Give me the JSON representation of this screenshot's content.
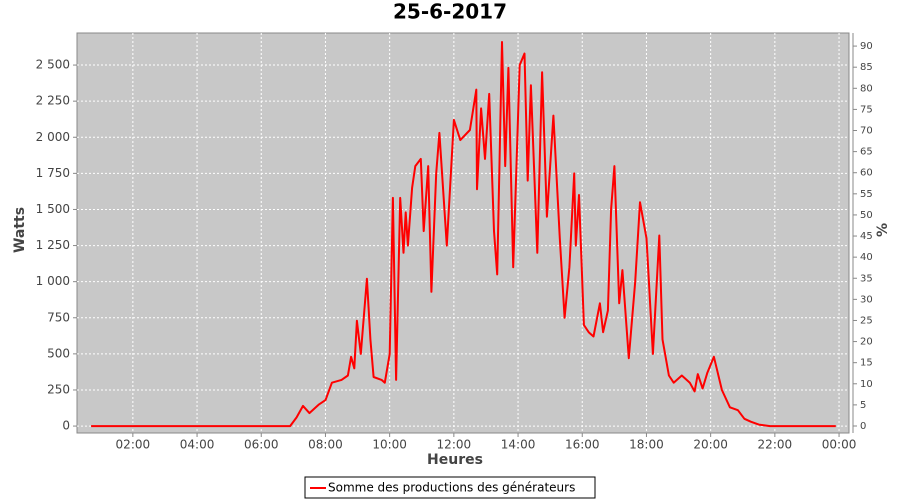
{
  "chart_data": {
    "type": "line",
    "title": "25-6-2017",
    "x_label": "Heures",
    "y_label": "Watts",
    "y2_label": "%",
    "x": [
      0.7,
      6.5,
      6.9,
      7.1,
      7.3,
      7.5,
      7.8,
      8.0,
      8.2,
      8.5,
      8.7,
      8.8,
      8.9,
      8.98,
      9.1,
      9.29,
      9.4,
      9.5,
      9.75,
      9.85,
      10.0,
      10.1,
      10.2,
      10.33,
      10.43,
      10.5,
      10.57,
      10.7,
      10.8,
      10.97,
      11.06,
      11.2,
      11.3,
      11.45,
      11.55,
      11.78,
      12.0,
      12.2,
      12.5,
      12.7,
      12.72,
      12.85,
      12.97,
      13.1,
      13.25,
      13.35,
      13.5,
      13.6,
      13.7,
      13.85,
      14.05,
      14.2,
      14.3,
      14.4,
      14.6,
      14.75,
      14.9,
      15.1,
      15.3,
      15.45,
      15.6,
      15.75,
      15.8,
      15.9,
      16.05,
      16.2,
      16.35,
      16.55,
      16.65,
      16.8,
      16.9,
      17.0,
      17.15,
      17.25,
      17.45,
      17.65,
      17.8,
      18.0,
      18.2,
      18.4,
      18.5,
      18.7,
      18.85,
      19.1,
      19.35,
      19.5,
      19.6,
      19.75,
      19.9,
      20.1,
      20.35,
      20.6,
      20.85,
      21.05,
      21.25,
      21.5,
      21.85,
      23.9
    ],
    "series": [
      {
        "name": "Somme des productions des  générateurs",
        "color": "#ff0000",
        "values": [
          0,
          0,
          0,
          60,
          140,
          90,
          150,
          180,
          300,
          320,
          350,
          480,
          400,
          730,
          500,
          1020,
          600,
          340,
          320,
          300,
          500,
          1580,
          320,
          1580,
          1200,
          1480,
          1250,
          1650,
          1800,
          1850,
          1350,
          1800,
          930,
          1750,
          2030,
          1250,
          2120,
          1980,
          2050,
          2330,
          1640,
          2200,
          1850,
          2300,
          1350,
          1050,
          2660,
          1800,
          2480,
          1100,
          2500,
          2580,
          1700,
          2360,
          1200,
          2450,
          1450,
          2150,
          1300,
          750,
          1100,
          1750,
          1250,
          1600,
          700,
          650,
          620,
          850,
          650,
          800,
          1500,
          1800,
          850,
          1080,
          470,
          1000,
          1550,
          1300,
          500,
          1320,
          600,
          350,
          300,
          350,
          300,
          240,
          360,
          260,
          370,
          480,
          250,
          130,
          110,
          50,
          30,
          10,
          0,
          0
        ]
      }
    ],
    "xlim": [
      0.26,
      24.31
    ],
    "xticks": [
      {
        "value": 2,
        "label": "02:00"
      },
      {
        "value": 4,
        "label": "04:00"
      },
      {
        "value": 6,
        "label": "06:00"
      },
      {
        "value": 8,
        "label": "08:00"
      },
      {
        "value": 10,
        "label": "10:00"
      },
      {
        "value": 12,
        "label": "12:00"
      },
      {
        "value": 14,
        "label": "14:00"
      },
      {
        "value": 16,
        "label": "16:00"
      },
      {
        "value": 18,
        "label": "18:00"
      },
      {
        "value": 20,
        "label": "20:00"
      },
      {
        "value": 22,
        "label": "22:00"
      },
      {
        "value": 24,
        "label": "00:00"
      }
    ],
    "ylim": [
      -48,
      2722
    ],
    "yticks": [
      0,
      250,
      500,
      750,
      {
        "value": 1000,
        "label": "1 000"
      },
      {
        "value": 1250,
        "label": "1 250"
      },
      {
        "value": 1500,
        "label": "1 500"
      },
      {
        "value": 1750,
        "label": "1 750"
      },
      {
        "value": 2000,
        "label": "2 000"
      },
      {
        "value": 2250,
        "label": "2 250"
      },
      {
        "value": 2500,
        "label": "2 500"
      }
    ],
    "y2lim": [
      -1.66,
      93.1
    ],
    "y2ticks": [
      0,
      5,
      10,
      15,
      20,
      25,
      30,
      35,
      40,
      45,
      50,
      55,
      60,
      65,
      70,
      75,
      80,
      85,
      90
    ],
    "grid": true
  }
}
